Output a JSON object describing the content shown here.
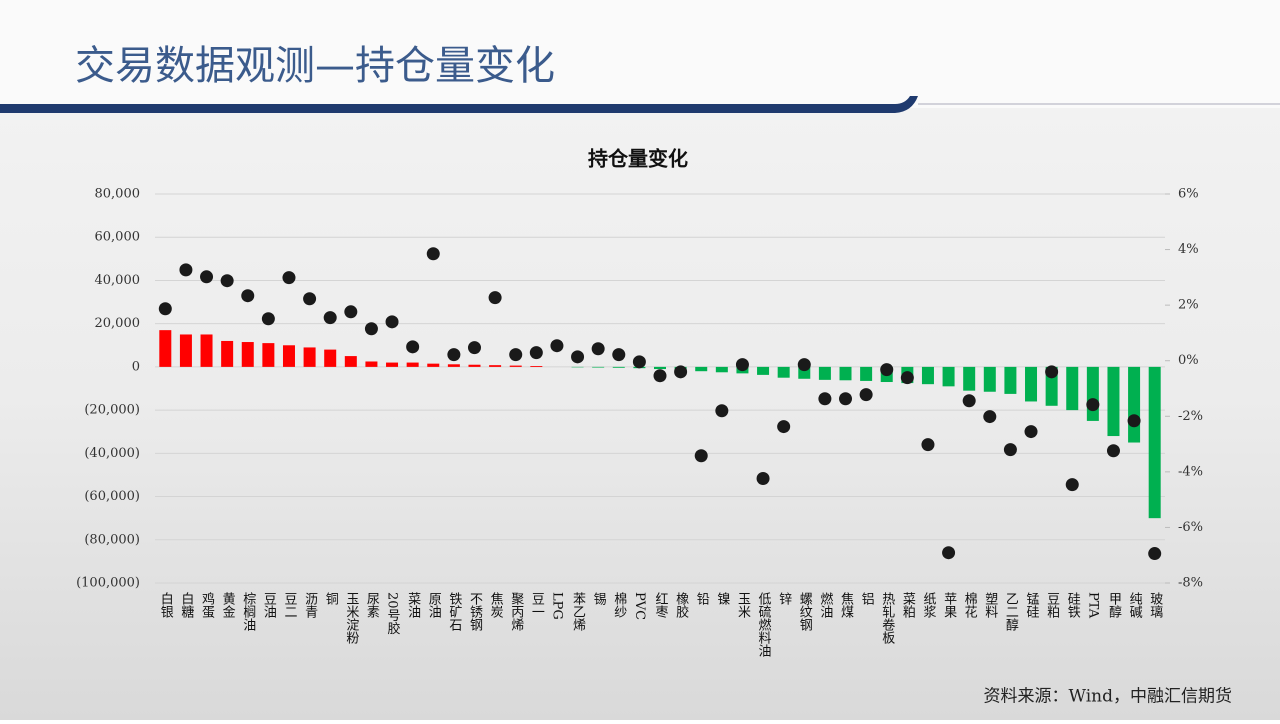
{
  "slide": {
    "title": "交易数据观测—持仓量变化",
    "source": "资料来源：Wind，中融汇信期货"
  },
  "chart_data": {
    "type": "bar",
    "title": "持仓量变化",
    "categories": [
      "白银",
      "白糖",
      "鸡蛋",
      "黄金",
      "棕榈油",
      "豆油",
      "豆二",
      "沥青",
      "铜",
      "玉米淀粉",
      "尿素",
      "20号胶",
      "菜油",
      "原油",
      "铁矿石",
      "不锈钢",
      "焦炭",
      "聚丙烯",
      "豆一",
      "LPG",
      "苯乙烯",
      "锡",
      "棉纱",
      "PVC",
      "红枣",
      "橡胶",
      "铅",
      "镍",
      "玉米",
      "低硫燃料油",
      "锌",
      "螺纹钢",
      "燃油",
      "焦煤",
      "铝",
      "热轧卷板",
      "菜粕",
      "纸浆",
      "苹果",
      "棉花",
      "塑料",
      "乙二醇",
      "锰硅",
      "豆粕",
      "硅铁",
      "PTA",
      "甲醇",
      "纯碱",
      "玻璃"
    ],
    "series": [
      {
        "type": "bar",
        "positive_color": "#ff0000",
        "negative_color": "#00b050",
        "values": [
          17000,
          15000,
          15000,
          12000,
          11500,
          11000,
          10000,
          9000,
          8000,
          5000,
          2500,
          2000,
          2000,
          1500,
          1200,
          1000,
          800,
          600,
          400,
          0,
          -200,
          -300,
          -400,
          -600,
          -1000,
          -1500,
          -2000,
          -2500,
          -3000,
          -3700,
          -5000,
          -5500,
          -6000,
          -6200,
          -6500,
          -7000,
          -7500,
          -8000,
          -9000,
          -11000,
          -11500,
          -12500,
          -16000,
          -18000,
          -20000,
          -25000,
          -32000,
          -35000,
          -70000
        ]
      },
      {
        "type": "scatter",
        "axis": "y2",
        "color": "#1a1a1a",
        "values": [
          1.87,
          3.27,
          3.02,
          2.88,
          2.34,
          1.51,
          2.99,
          2.23,
          1.55,
          1.76,
          1.15,
          1.4,
          0.5,
          3.85,
          0.22,
          0.47,
          2.27,
          0.22,
          0.29,
          0.54,
          0.14,
          0.43,
          0.22,
          -0.04,
          -0.54,
          -0.4,
          -3.42,
          -1.8,
          -0.14,
          -4.24,
          -2.37,
          -0.14,
          -1.37,
          -1.37,
          -1.22,
          -0.32,
          -0.61,
          -3.02,
          -6.91,
          -1.44,
          -2.01,
          -3.2,
          -2.55,
          -0.4,
          -4.46,
          -1.58,
          -3.24,
          -2.16,
          -6.94
        ]
      }
    ],
    "ylim": [
      -100000,
      80000
    ],
    "yticks": [
      {
        "value": -100000,
        "label": "(100,000)"
      },
      {
        "value": -80000,
        "label": "(80,000)"
      },
      {
        "value": -60000,
        "label": "(60,000)"
      },
      {
        "value": -40000,
        "label": "(40,000)"
      },
      {
        "value": -20000,
        "label": "(20,000)"
      },
      0,
      {
        "value": 20000,
        "label": "20,000"
      },
      {
        "value": 40000,
        "label": "40,000"
      },
      {
        "value": 60000,
        "label": "60,000"
      },
      {
        "value": 80000,
        "label": "80,000"
      }
    ],
    "negative_tick_color": "#c00000",
    "y2lim": [
      -8,
      6
    ],
    "y2ticks": [
      {
        "value": -8,
        "label": "-8%"
      },
      {
        "value": -6,
        "label": "-6%"
      },
      {
        "value": -4,
        "label": "-4%"
      },
      {
        "value": -2,
        "label": "-2%"
      },
      {
        "value": 0,
        "label": "0%"
      },
      {
        "value": 2,
        "label": "2%"
      },
      {
        "value": 4,
        "label": "4%"
      },
      {
        "value": 6,
        "label": "6%"
      }
    ],
    "grid": true
  }
}
